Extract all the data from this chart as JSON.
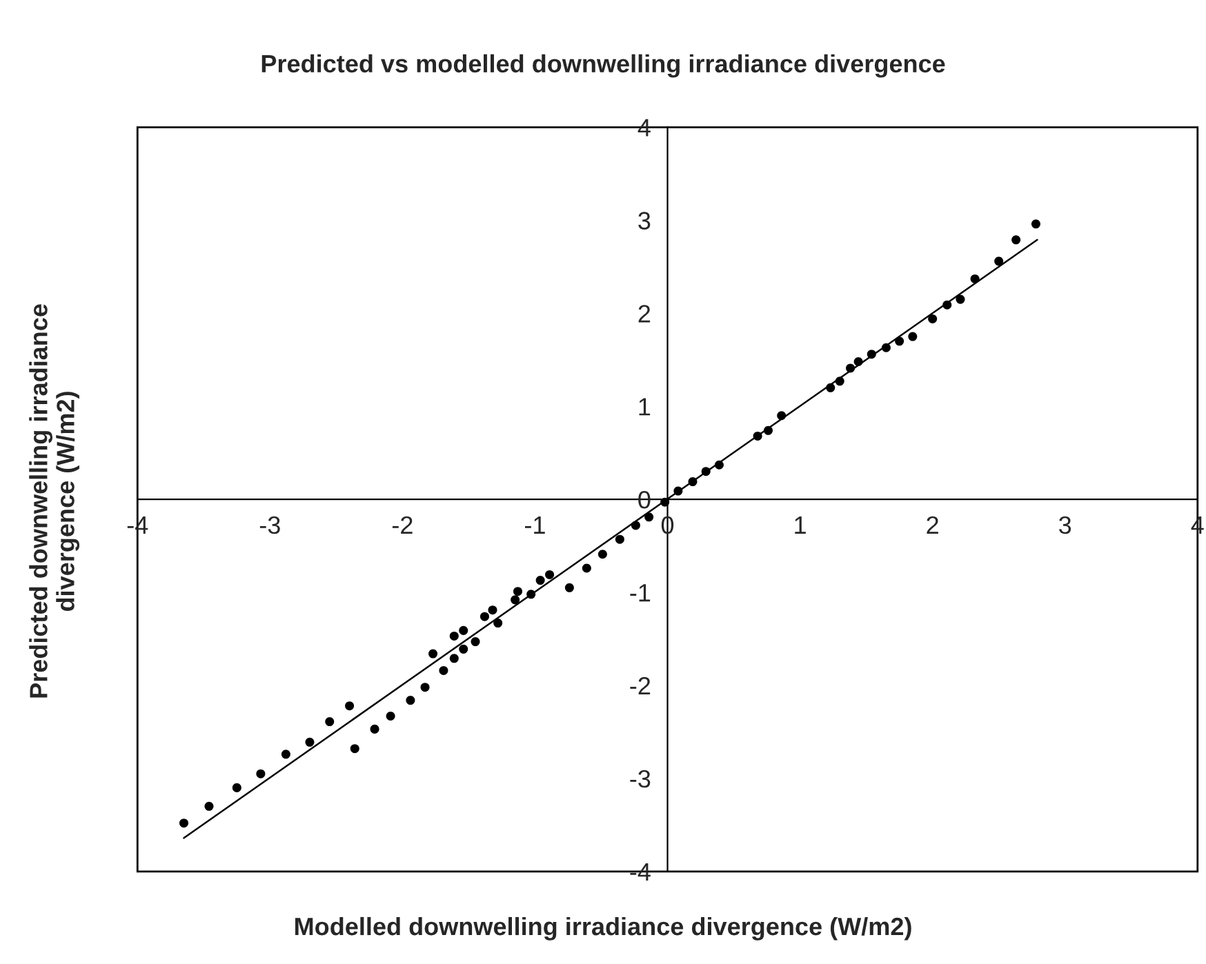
{
  "chart_data": {
    "type": "scatter",
    "title": "Predicted vs modelled downwelling irradiance divergence",
    "xlabel": "Modelled downwelling irradiance divergence (W/m2)",
    "ylabel": "Predicted downwelling irradiance\ndivergence (W/m2)",
    "xlim": [
      -4,
      4
    ],
    "ylim": [
      -4,
      4
    ],
    "xticks": [
      -4,
      -3,
      -2,
      -1,
      0,
      1,
      2,
      3,
      4
    ],
    "yticks": [
      -4,
      -3,
      -2,
      -1,
      0,
      1,
      2,
      3,
      4
    ],
    "grid": false,
    "legend": false,
    "marker": "circle",
    "series": [
      {
        "color": "#000000",
        "x": [
          -3.65,
          -3.46,
          -3.25,
          -3.07,
          -2.88,
          -2.7,
          -2.55,
          -2.4,
          -2.36,
          -2.21,
          -2.09,
          -1.94,
          -1.83,
          -1.77,
          -1.69,
          -1.61,
          -1.61,
          -1.54,
          -1.54,
          -1.45,
          -1.38,
          -1.28,
          -1.32,
          -1.15,
          -1.13,
          -1.03,
          -0.96,
          -0.89,
          -0.74,
          -0.61,
          -0.49,
          -0.36,
          -0.24,
          -0.14,
          -0.02,
          0.08,
          0.19,
          0.29,
          0.39,
          0.68,
          0.76,
          0.86,
          1.23,
          1.3,
          1.38,
          1.44,
          1.54,
          1.65,
          1.75,
          1.85,
          2.0,
          2.11,
          2.21,
          2.32,
          2.5,
          2.63,
          2.78
        ],
        "values": [
          -3.48,
          -3.3,
          -3.1,
          -2.95,
          -2.74,
          -2.61,
          -2.39,
          -2.22,
          -2.68,
          -2.47,
          -2.33,
          -2.16,
          -2.02,
          -1.66,
          -1.84,
          -1.71,
          -1.47,
          -1.41,
          -1.61,
          -1.53,
          -1.26,
          -1.33,
          -1.19,
          -1.08,
          -0.99,
          -1.02,
          -0.87,
          -0.81,
          -0.95,
          -0.74,
          -0.59,
          -0.43,
          -0.28,
          -0.19,
          -0.03,
          0.09,
          0.19,
          0.3,
          0.37,
          0.68,
          0.74,
          0.9,
          1.2,
          1.27,
          1.41,
          1.48,
          1.56,
          1.63,
          1.7,
          1.75,
          1.94,
          2.09,
          2.15,
          2.37,
          2.56,
          2.79,
          2.96
        ]
      },
      {
        "type": "line",
        "color": "#000000",
        "marker": "none",
        "line_style": "solid",
        "x": [
          -3.65,
          2.79
        ],
        "values": [
          -3.64,
          2.79
        ]
      }
    ]
  }
}
